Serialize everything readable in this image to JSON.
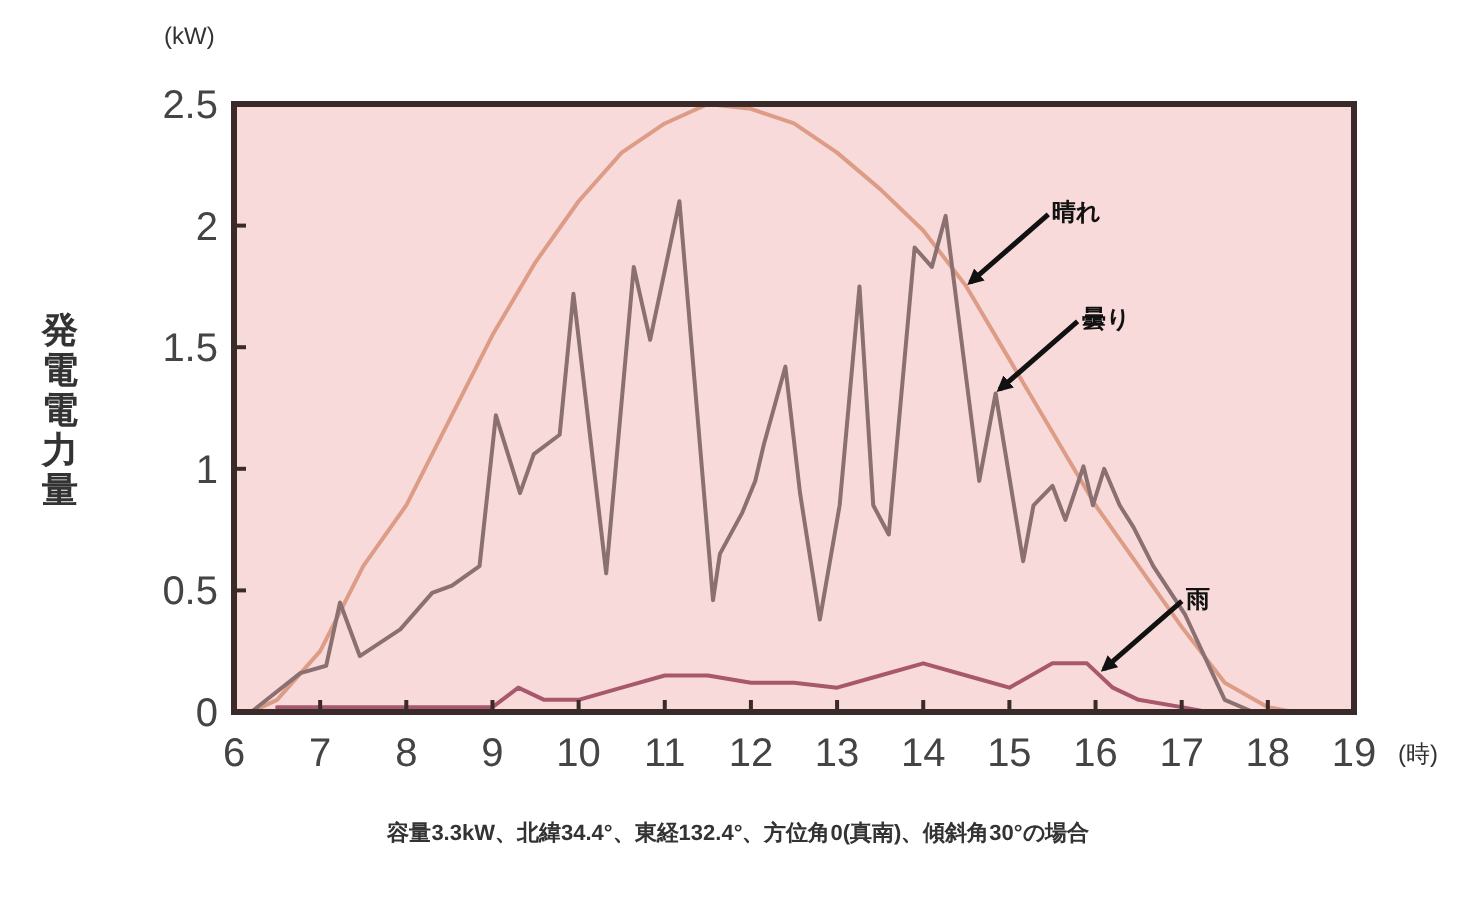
{
  "chart_data": {
    "type": "line",
    "ylabel": "発電電力量",
    "xlabel": "(時)",
    "xlim": [
      6,
      19
    ],
    "xticks": [
      6,
      7,
      8,
      9,
      10,
      11,
      12,
      13,
      14,
      15,
      16,
      17,
      18,
      19
    ],
    "ylim": [
      0,
      2.5
    ],
    "yticks": [
      0,
      {
        "value": 0.5,
        "label": "0.5"
      },
      1,
      {
        "value": 1.5,
        "label": "1.5"
      },
      2,
      {
        "value": 2.5,
        "label": "2.5"
      }
    ],
    "grid": false,
    "marker": "none",
    "line_style": "solid",
    "series": [
      {
        "color": "#dc9c86",
        "x": [
          6.2,
          6.5,
          7,
          7.5,
          8,
          8.5,
          9,
          9.5,
          10,
          10.5,
          11,
          11.5,
          12,
          12.5,
          13,
          13.5,
          14,
          14.5,
          15,
          15.5,
          16,
          16.5,
          17,
          17.5,
          18,
          18.3
        ],
        "values": [
          0,
          0.05,
          0.25,
          0.6,
          0.85,
          1.2,
          1.55,
          1.85,
          2.1,
          2.3,
          2.42,
          2.5,
          2.48,
          2.42,
          2.3,
          2.15,
          1.98,
          1.75,
          1.45,
          1.15,
          0.85,
          0.6,
          0.35,
          0.12,
          0.02,
          0
        ]
      },
      {
        "color": "#8a7070",
        "x": [
          6.2,
          6.77,
          7.07,
          7.23,
          7.46,
          7.93,
          8.3,
          8.53,
          8.85,
          9.04,
          9.32,
          9.48,
          9.78,
          9.94,
          10.32,
          10.64,
          10.83,
          11.17,
          11.56,
          11.64,
          11.9,
          12.05,
          12.15,
          12.4,
          12.57,
          12.8,
          13.03,
          13.26,
          13.42,
          13.6,
          13.9,
          14.1,
          14.26,
          14.65,
          14.84,
          15.16,
          15.28,
          15.5,
          15.65,
          15.86,
          15.97,
          16.1,
          16.28,
          16.44,
          16.67,
          17.04,
          17.5,
          17.83
        ],
        "values": [
          0,
          0.16,
          0.19,
          0.45,
          0.23,
          0.34,
          0.49,
          0.52,
          0.6,
          1.22,
          0.9,
          1.06,
          1.14,
          1.72,
          0.57,
          1.83,
          1.53,
          2.1,
          0.46,
          0.65,
          0.82,
          0.95,
          1.1,
          1.42,
          0.9,
          0.38,
          0.85,
          1.75,
          0.85,
          0.73,
          1.91,
          1.83,
          2.04,
          0.95,
          1.31,
          0.62,
          0.85,
          0.93,
          0.79,
          1.01,
          0.85,
          1,
          0.85,
          0.76,
          0.6,
          0.4,
          0.05,
          0
        ]
      },
      {
        "color": "#a8586c",
        "x": [
          6.5,
          9,
          9.3,
          9.6,
          10,
          10.5,
          11,
          11.5,
          12,
          12.5,
          13,
          13.5,
          14,
          14.5,
          15,
          15.5,
          15.9,
          16.2,
          16.5,
          17,
          17.3
        ],
        "values": [
          0.02,
          0.02,
          0.1,
          0.05,
          0.05,
          0.1,
          0.15,
          0.15,
          0.12,
          0.12,
          0.1,
          0.15,
          0.2,
          0.15,
          0.1,
          0.2,
          0.2,
          0.1,
          0.05,
          0.02,
          0
        ]
      }
    ],
    "annotations": [
      "(kW)",
      "容量3.3kW、北緯34.4°、東経132.4°、方位角0(真南)、傾斜角30°の場合",
      {
        "text": "晴れ",
        "x": 14.5,
        "y": 1.75
      },
      {
        "text": "曇り",
        "x": 14.84,
        "y": 1.31
      },
      {
        "text": "雨",
        "x": 16.05,
        "y": 0.16
      }
    ]
  }
}
